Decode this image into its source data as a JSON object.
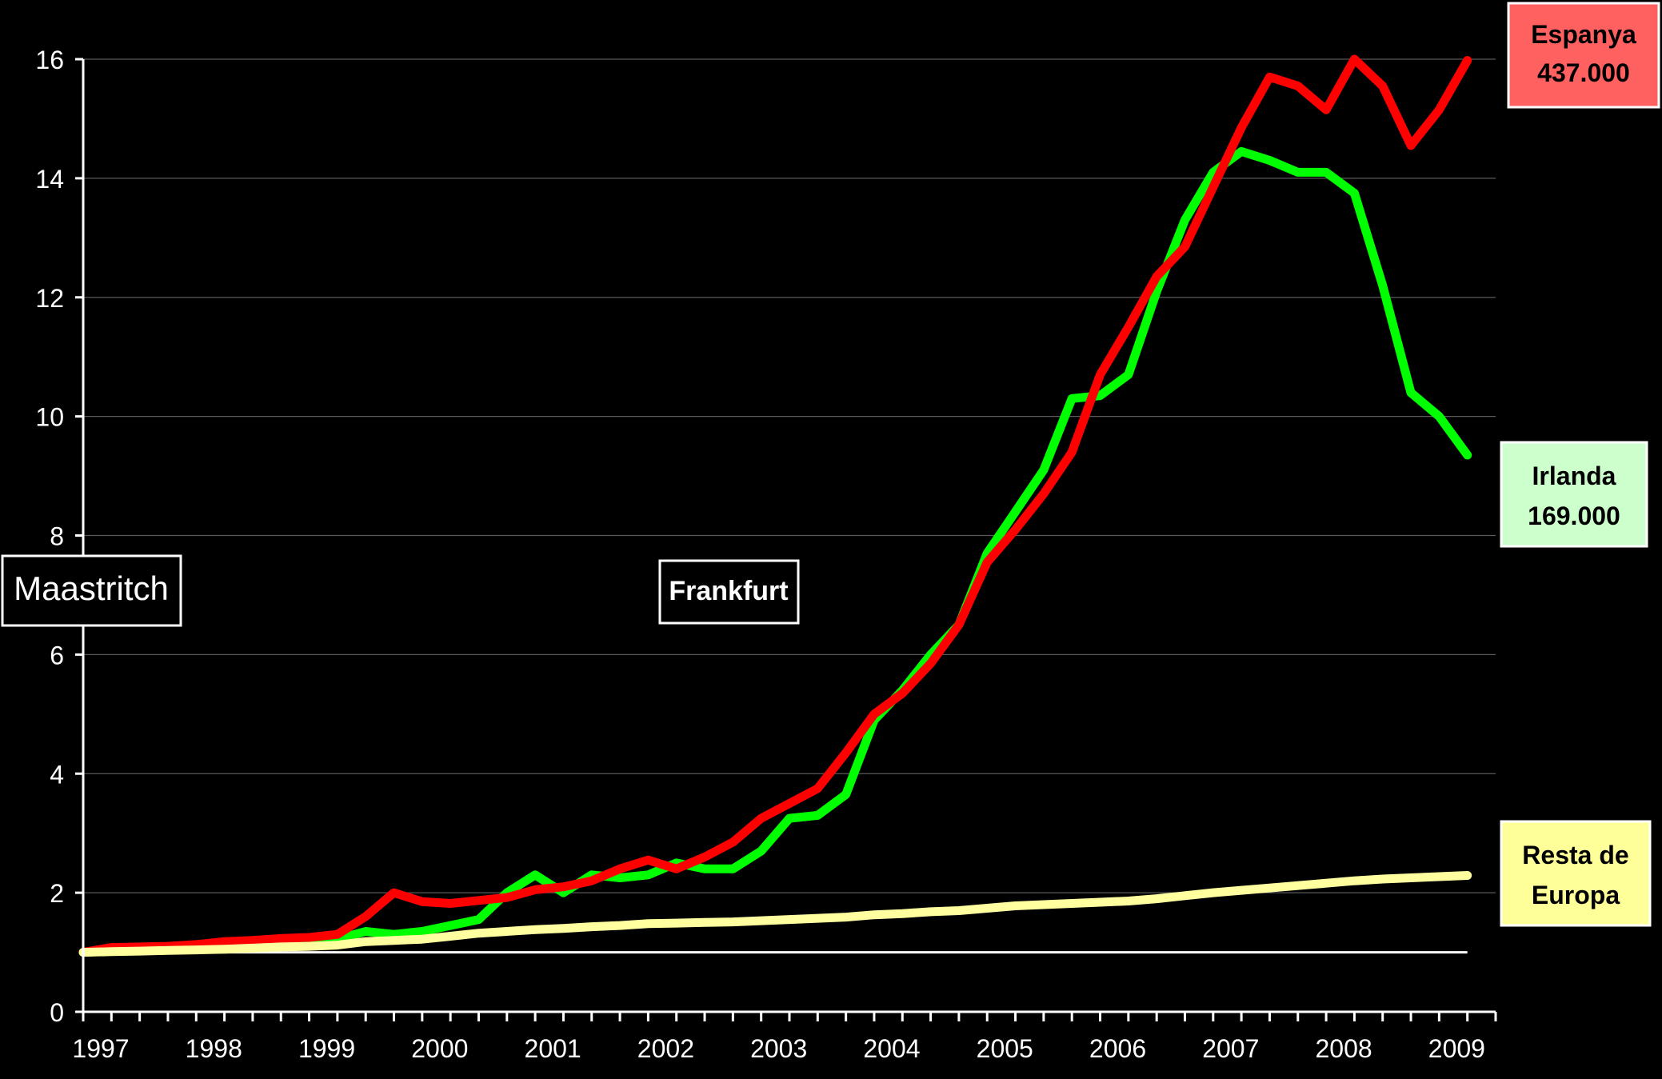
{
  "chart_data": {
    "type": "line",
    "title": "",
    "xlabel": "",
    "ylabel": "",
    "x_tick_labels": [
      "1997",
      "1998",
      "1999",
      "2000",
      "2001",
      "2002",
      "2003",
      "2004",
      "2005",
      "2006",
      "2007",
      "2008",
      "2009"
    ],
    "y_ticks": [
      0,
      2,
      4,
      6,
      8,
      10,
      12,
      14,
      16
    ],
    "ylim": [
      0,
      16
    ],
    "xlim": [
      1997.0,
      2009.5
    ],
    "grid": "horizontal",
    "reference_line": 1,
    "series": [
      {
        "key": "irlanda",
        "color": "#00ff00",
        "x": [
          1997.0,
          1997.25,
          1997.5,
          1997.75,
          1998.0,
          1998.25,
          1998.5,
          1998.75,
          1999.0,
          1999.25,
          1999.5,
          1999.75,
          2000.0,
          2000.25,
          2000.5,
          2000.75,
          2001.0,
          2001.25,
          2001.5,
          2001.75,
          2002.0,
          2002.25,
          2002.5,
          2002.75,
          2003.0,
          2003.25,
          2003.5,
          2003.75,
          2004.0,
          2004.25,
          2004.5,
          2004.75,
          2005.0,
          2005.25,
          2005.5,
          2005.75,
          2006.0,
          2006.25,
          2006.5,
          2006.75,
          2007.0,
          2007.25,
          2007.5,
          2007.75,
          2008.0,
          2008.25,
          2008.5,
          2008.75,
          2009.0,
          2009.25
        ],
        "y": [
          1.0,
          1.02,
          1.04,
          1.05,
          1.07,
          1.1,
          1.12,
          1.14,
          1.17,
          1.22,
          1.35,
          1.3,
          1.35,
          1.45,
          1.55,
          2.0,
          2.3,
          2.0,
          2.3,
          2.25,
          2.3,
          2.5,
          2.4,
          2.4,
          2.7,
          3.25,
          3.3,
          3.65,
          4.9,
          5.4,
          6.0,
          6.5,
          7.7,
          8.4,
          9.1,
          10.3,
          10.35,
          10.7,
          12.1,
          13.3,
          14.1,
          14.45,
          14.3,
          14.1,
          14.1,
          13.75,
          12.2,
          10.4,
          10.0,
          9.35
        ]
      },
      {
        "key": "espanya",
        "color": "#ff0000",
        "x": [
          1997.0,
          1997.25,
          1997.5,
          1997.75,
          1998.0,
          1998.25,
          1998.5,
          1998.75,
          1999.0,
          1999.25,
          1999.5,
          1999.75,
          2000.0,
          2000.25,
          2000.5,
          2000.75,
          2001.0,
          2001.25,
          2001.5,
          2001.75,
          2002.0,
          2002.25,
          2002.5,
          2002.75,
          2003.0,
          2003.25,
          2003.5,
          2003.75,
          2004.0,
          2004.25,
          2004.5,
          2004.75,
          2005.0,
          2005.25,
          2005.5,
          2005.75,
          2006.0,
          2006.25,
          2006.5,
          2006.75,
          2007.0,
          2007.25,
          2007.5,
          2007.75,
          2008.0,
          2008.25,
          2008.5,
          2008.75,
          2009.0,
          2009.25
        ],
        "y": [
          1.0,
          1.08,
          1.09,
          1.1,
          1.13,
          1.18,
          1.2,
          1.23,
          1.25,
          1.3,
          1.6,
          2.0,
          1.85,
          1.82,
          1.87,
          1.92,
          2.05,
          2.1,
          2.2,
          2.4,
          2.55,
          2.4,
          2.6,
          2.85,
          3.25,
          3.5,
          3.75,
          4.35,
          5.0,
          5.35,
          5.85,
          6.5,
          7.55,
          8.1,
          8.7,
          9.4,
          10.7,
          11.5,
          12.35,
          12.85,
          13.85,
          14.85,
          15.7,
          15.55,
          15.15,
          16.0,
          15.55,
          14.55,
          15.15,
          15.98
        ]
      },
      {
        "key": "resta_europa",
        "color": "#ffffa0",
        "x": [
          1997.0,
          1997.25,
          1997.5,
          1997.75,
          1998.0,
          1998.25,
          1998.5,
          1998.75,
          1999.0,
          1999.25,
          1999.5,
          1999.75,
          2000.0,
          2000.25,
          2000.5,
          2000.75,
          2001.0,
          2001.25,
          2001.5,
          2001.75,
          2002.0,
          2002.25,
          2002.5,
          2002.75,
          2003.0,
          2003.25,
          2003.5,
          2003.75,
          2004.0,
          2004.25,
          2004.5,
          2004.75,
          2005.0,
          2005.25,
          2005.5,
          2005.75,
          2006.0,
          2006.25,
          2006.5,
          2006.75,
          2007.0,
          2007.25,
          2007.5,
          2007.75,
          2008.0,
          2008.25,
          2008.5,
          2008.75,
          2009.0,
          2009.25
        ],
        "y": [
          1.0,
          1.01,
          1.02,
          1.03,
          1.04,
          1.05,
          1.07,
          1.09,
          1.1,
          1.12,
          1.18,
          1.2,
          1.22,
          1.27,
          1.32,
          1.35,
          1.38,
          1.4,
          1.43,
          1.45,
          1.48,
          1.49,
          1.5,
          1.51,
          1.53,
          1.55,
          1.57,
          1.59,
          1.63,
          1.65,
          1.68,
          1.7,
          1.74,
          1.78,
          1.8,
          1.82,
          1.84,
          1.86,
          1.9,
          1.95,
          2.0,
          2.04,
          2.08,
          2.12,
          2.16,
          2.2,
          2.23,
          2.25,
          2.27,
          2.29
        ]
      }
    ]
  },
  "labels": {
    "espanya": {
      "line1": "Espanya",
      "line2": "437.000",
      "bg": "#ff6060",
      "fg": "#000000"
    },
    "irlanda": {
      "line1": "Irlanda",
      "line2": "169.000",
      "bg": "#ccffcc",
      "fg": "#000000"
    },
    "resta": {
      "line1": "Resta de",
      "line2": "Europa",
      "bg": "#ffff99",
      "fg": "#000000"
    },
    "maastritch": "Maastritch",
    "frankfurt": "Frankfurt"
  }
}
